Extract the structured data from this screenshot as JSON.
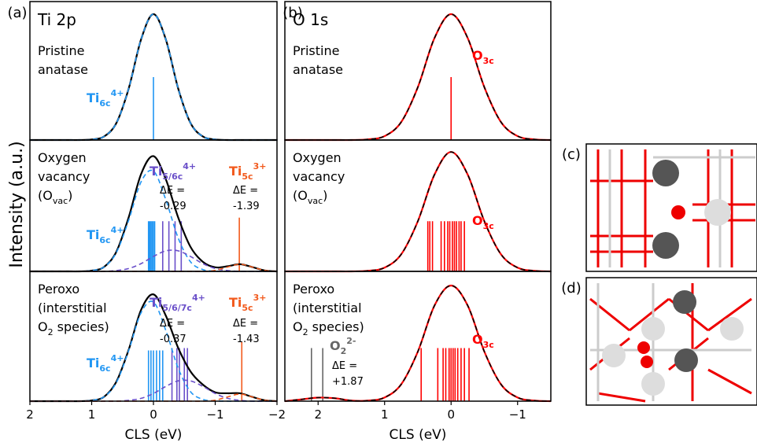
{
  "figure": {
    "ylabel": "Intensity (a.u.)",
    "panel_labels": [
      "(a)",
      "(b)",
      "(c)",
      "(d)"
    ]
  },
  "chart_data": [
    {
      "type": "line",
      "xlim": [
        2,
        -2
      ],
      "ylim": [
        0,
        1.1
      ],
      "x": [
        2,
        1.8,
        1.6,
        1.4,
        1.2,
        1.0,
        0.8,
        0.6,
        0.4,
        0.2,
        0,
        -0.2,
        -0.4,
        -0.6,
        -0.8,
        -1.0,
        -1.2,
        -1.4,
        -1.6,
        -1.8,
        -2
      ],
      "series": [
        {
          "color": "#000000",
          "dash": false,
          "values": [
            0,
            0,
            0,
            0,
            0,
            0.004,
            0.028,
            0.135,
            0.41,
            0.8,
            1,
            0.8,
            0.41,
            0.135,
            0.028,
            0.004,
            0,
            0,
            0,
            0,
            0
          ]
        },
        {
          "color": "#2196f3",
          "dash": true,
          "values": [
            0,
            0,
            0,
            0,
            0,
            0.004,
            0.028,
            0.135,
            0.41,
            0.8,
            1,
            0.8,
            0.41,
            0.135,
            0.028,
            0.004,
            0,
            0,
            0,
            0,
            0
          ]
        }
      ],
      "sticks": [
        {
          "color": "#2196f3",
          "x": [
            0
          ],
          "values": [
            0.5
          ]
        }
      ],
      "annotations": [
        {
          "parts": [
            {
              "t": "Ti 2p"
            }
          ]
        },
        {
          "parts": [
            {
              "t": "Pristine"
            }
          ]
        },
        {
          "parts": [
            {
              "t": "anatase"
            }
          ]
        },
        {
          "color": "#2196f3",
          "parts": [
            {
              "t": "Ti"
            },
            {
              "sub": "6c"
            },
            {
              "sup": "4+"
            }
          ]
        }
      ]
    },
    {
      "type": "line",
      "xlim": [
        2,
        -2
      ],
      "ylim": [
        0,
        1.1
      ],
      "x": [
        2,
        1.8,
        1.6,
        1.4,
        1.2,
        1.0,
        0.8,
        0.6,
        0.4,
        0.2,
        0,
        -0.2,
        -0.4,
        -0.6,
        -0.8,
        -1.0,
        -1.2,
        -1.4,
        -1.6,
        -1.8,
        -2
      ],
      "series": [
        {
          "color": "#000000",
          "dash": false,
          "values": [
            0,
            0,
            0,
            0,
            0,
            0.006,
            0.037,
            0.165,
            0.454,
            0.815,
            0.965,
            0.772,
            0.452,
            0.205,
            0.08,
            0.034,
            0.043,
            0.06,
            0.036,
            0.008,
            0
          ]
        },
        {
          "color": "#2196f3",
          "dash": true,
          "values": [
            0,
            0,
            0,
            0,
            0,
            0.006,
            0.037,
            0.158,
            0.43,
            0.75,
            0.84,
            0.6,
            0.28,
            0.08,
            0.015,
            0.002,
            0,
            0,
            0,
            0,
            0
          ]
        },
        {
          "color": "#6a4fc9",
          "dash": true,
          "values": [
            0,
            0,
            0,
            0,
            0,
            0,
            0,
            0.007,
            0.024,
            0.065,
            0.125,
            0.172,
            0.172,
            0.125,
            0.065,
            0.024,
            0.007,
            0,
            0,
            0,
            0
          ]
        },
        {
          "color": "#f25a1d",
          "dash": true,
          "values": [
            0,
            0,
            0,
            0,
            0,
            0,
            0,
            0,
            0,
            0,
            0,
            0,
            0,
            0,
            0,
            0.008,
            0.036,
            0.06,
            0.036,
            0.008,
            0
          ]
        }
      ],
      "sticks": [
        {
          "color": "#2196f3",
          "x": [
            0.08,
            0.06,
            0.04,
            0.02,
            0,
            -0.02
          ],
          "values": [
            0.42,
            0.42,
            0.42,
            0.42,
            0.42,
            0.42
          ]
        },
        {
          "color": "#6a4fc9",
          "x": [
            -0.15,
            -0.25,
            -0.35,
            -0.45
          ],
          "values": [
            0.42,
            0.42,
            0.42,
            0.42
          ]
        },
        {
          "color": "#f25a1d",
          "x": [
            -1.39
          ],
          "values": [
            0.45
          ]
        }
      ],
      "annotations": [
        {
          "parts": [
            {
              "t": "Oxygen"
            }
          ]
        },
        {
          "parts": [
            {
              "t": "vacancy"
            }
          ]
        },
        {
          "parts": [
            {
              "t": "(O"
            },
            {
              "sub": "vac"
            },
            {
              "t": ")"
            }
          ]
        },
        {
          "color": "#6a4fc9",
          "parts": [
            {
              "t": "Ti"
            },
            {
              "sub": "5/6c"
            },
            {
              "sup": "4+"
            }
          ]
        },
        {
          "parts": [
            {
              "t": "ΔE ="
            }
          ]
        },
        {
          "parts": [
            {
              "t": "-0.29"
            }
          ]
        },
        {
          "color": "#f25a1d",
          "parts": [
            {
              "t": "Ti"
            },
            {
              "sub": "5c"
            },
            {
              "sup": "3+"
            }
          ]
        },
        {
          "parts": [
            {
              "t": "ΔE ="
            }
          ]
        },
        {
          "parts": [
            {
              "t": "-1.39"
            }
          ]
        },
        {
          "color": "#2196f3",
          "parts": [
            {
              "t": "Ti"
            },
            {
              "sub": "6c"
            },
            {
              "sup": "4+"
            }
          ]
        }
      ]
    },
    {
      "type": "line",
      "xlim": [
        2,
        -2
      ],
      "ylim": [
        0,
        1.1
      ],
      "xlabel": "CLS (eV)",
      "xticks": [
        2,
        1,
        0,
        {
          "value": -1,
          "label": "−1"
        },
        {
          "value": -2,
          "label": "−2"
        }
      ],
      "x": [
        2,
        1.8,
        1.6,
        1.4,
        1.2,
        1.0,
        0.8,
        0.6,
        0.4,
        0.2,
        0,
        -0.2,
        -0.4,
        -0.6,
        -0.8,
        -1.0,
        -1.2,
        -1.4,
        -1.6,
        -1.8,
        -2
      ],
      "series": [
        {
          "color": "#000000",
          "dash": false,
          "values": [
            0,
            0,
            0,
            0,
            0,
            0.006,
            0.037,
            0.165,
            0.437,
            0.774,
            0.905,
            0.725,
            0.452,
            0.252,
            0.14,
            0.075,
            0.067,
            0.067,
            0.036,
            0.008,
            0
          ]
        },
        {
          "color": "#2196f3",
          "dash": true,
          "values": [
            0,
            0,
            0,
            0,
            0,
            0.006,
            0.037,
            0.158,
            0.43,
            0.75,
            0.84,
            0.6,
            0.28,
            0.08,
            0.015,
            0.002,
            0,
            0,
            0,
            0,
            0
          ]
        },
        {
          "color": "#6a4fc9",
          "dash": true,
          "values": [
            0,
            0,
            0,
            0,
            0,
            0,
            0,
            0,
            0.007,
            0.024,
            0.065,
            0.125,
            0.172,
            0.172,
            0.125,
            0.065,
            0.024,
            0.007,
            0,
            0,
            0
          ]
        },
        {
          "color": "#f25a1d",
          "dash": true,
          "values": [
            0,
            0,
            0,
            0,
            0,
            0,
            0,
            0,
            0,
            0,
            0,
            0,
            0,
            0,
            0,
            0.008,
            0.036,
            0.06,
            0.036,
            0.008,
            0
          ]
        }
      ],
      "sticks": [
        {
          "color": "#2196f3",
          "x": [
            0.08,
            0.04,
            0,
            -0.05,
            -0.1,
            -0.15
          ],
          "values": [
            0.43,
            0.43,
            0.43,
            0.43,
            0.43,
            0.43
          ]
        },
        {
          "color": "#6a4fc9",
          "x": [
            -0.3,
            -0.38,
            -0.42,
            -0.5,
            -0.55
          ],
          "values": [
            0.45,
            0.45,
            0.45,
            0.45,
            0.45
          ]
        },
        {
          "color": "#f25a1d",
          "x": [
            -1.43
          ],
          "values": [
            0.5
          ]
        }
      ],
      "annotations": [
        {
          "parts": [
            {
              "t": "Peroxo"
            }
          ]
        },
        {
          "parts": [
            {
              "t": "(interstitial"
            }
          ]
        },
        {
          "parts": [
            {
              "t": "O"
            },
            {
              "sub": "2"
            },
            {
              "t": " species)"
            }
          ]
        },
        {
          "color": "#6a4fc9",
          "parts": [
            {
              "t": "Ti"
            },
            {
              "sub": "5/6/7c"
            },
            {
              "sup": "4+"
            }
          ]
        },
        {
          "parts": [
            {
              "t": "ΔE ="
            }
          ]
        },
        {
          "parts": [
            {
              "t": "-0.37"
            }
          ]
        },
        {
          "color": "#f25a1d",
          "parts": [
            {
              "t": "Ti"
            },
            {
              "sub": "5c"
            },
            {
              "sup": "3+"
            }
          ]
        },
        {
          "parts": [
            {
              "t": "ΔE ="
            }
          ]
        },
        {
          "parts": [
            {
              "t": "-1.43"
            }
          ]
        },
        {
          "color": "#2196f3",
          "parts": [
            {
              "t": "Ti"
            },
            {
              "sub": "6c"
            },
            {
              "sup": "4+"
            }
          ]
        }
      ]
    },
    {
      "type": "line",
      "xlim": [
        2.5,
        -1.5
      ],
      "ylim": [
        0,
        1.1
      ],
      "x": [
        2.5,
        2.25,
        2,
        1.75,
        1.5,
        1.25,
        1,
        0.75,
        0.5,
        0.25,
        0,
        -0.25,
        -0.5,
        -0.75,
        -1,
        -1.25,
        -1.5
      ],
      "series": [
        {
          "color": "#ff0000",
          "dash": false,
          "values": [
            0,
            0,
            0,
            0,
            0,
            0.005,
            0.031,
            0.143,
            0.42,
            0.81,
            1,
            0.81,
            0.42,
            0.143,
            0.031,
            0.005,
            0
          ]
        },
        {
          "color": "#000000",
          "dash": true,
          "values": [
            0,
            0,
            0,
            0,
            0,
            0.005,
            0.031,
            0.143,
            0.42,
            0.81,
            1,
            0.81,
            0.42,
            0.143,
            0.031,
            0.005,
            0
          ]
        }
      ],
      "sticks": [
        {
          "color": "#ff0000",
          "x": [
            0
          ],
          "values": [
            0.5
          ]
        }
      ],
      "annotations": [
        {
          "parts": [
            {
              "t": "O 1s"
            }
          ]
        },
        {
          "parts": [
            {
              "t": "Pristine"
            }
          ]
        },
        {
          "parts": [
            {
              "t": "anatase"
            }
          ]
        },
        {
          "color": "#ff0000",
          "parts": [
            {
              "t": "O"
            },
            {
              "sub": "3c"
            }
          ]
        }
      ]
    },
    {
      "type": "line",
      "xlim": [
        2.5,
        -1.5
      ],
      "ylim": [
        0,
        1.1
      ],
      "x": [
        2.5,
        2.25,
        2,
        1.75,
        1.5,
        1.25,
        1,
        0.75,
        0.5,
        0.25,
        0,
        -0.25,
        -0.5,
        -0.75,
        -1,
        -1.25,
        -1.5
      ],
      "series": [
        {
          "color": "#ff0000",
          "dash": false,
          "values": [
            0,
            0,
            0,
            0,
            0,
            0.005,
            0.031,
            0.143,
            0.42,
            0.81,
            1,
            0.81,
            0.42,
            0.143,
            0.031,
            0.005,
            0
          ]
        },
        {
          "color": "#000000",
          "dash": true,
          "values": [
            0,
            0,
            0,
            0,
            0,
            0.005,
            0.031,
            0.143,
            0.42,
            0.81,
            1,
            0.81,
            0.42,
            0.143,
            0.031,
            0.005,
            0
          ]
        }
      ],
      "sticks": [
        {
          "color": "#ff0000",
          "x": [
            0.35,
            0.32,
            0.28,
            0.15,
            0.1,
            0.05,
            0.02,
            -0.02,
            -0.05,
            -0.08,
            -0.12,
            -0.15,
            -0.2
          ],
          "values": [
            0.42,
            0.42,
            0.42,
            0.42,
            0.42,
            0.42,
            0.42,
            0.42,
            0.42,
            0.42,
            0.42,
            0.42,
            0.42
          ]
        }
      ],
      "annotations": [
        {
          "parts": [
            {
              "t": "Oxygen"
            }
          ]
        },
        {
          "parts": [
            {
              "t": "vacancy"
            }
          ]
        },
        {
          "parts": [
            {
              "t": "(O"
            },
            {
              "sub": "vac"
            },
            {
              "t": ")"
            }
          ]
        },
        {
          "color": "#ff0000",
          "parts": [
            {
              "t": "O"
            },
            {
              "sub": "3c"
            }
          ]
        }
      ]
    },
    {
      "type": "line",
      "xlim": [
        2.5,
        -1.5
      ],
      "ylim": [
        0,
        1.1
      ],
      "xlabel": "CLS (eV)",
      "xticks": [
        2,
        1,
        0,
        {
          "value": -1,
          "label": "−1"
        }
      ],
      "x": [
        2.5,
        2.25,
        2,
        1.75,
        1.5,
        1.25,
        1,
        0.75,
        0.5,
        0.25,
        0,
        -0.25,
        -0.5,
        -0.75,
        -1,
        -1.25,
        -1.5
      ],
      "series": [
        {
          "color": "#ff0000",
          "dash": false,
          "values": [
            0,
            0.015,
            0.03,
            0.025,
            0.005,
            0.005,
            0.031,
            0.143,
            0.42,
            0.81,
            0.98,
            0.81,
            0.42,
            0.143,
            0.031,
            0.005,
            0
          ]
        },
        {
          "color": "#000000",
          "dash": true,
          "values": [
            0,
            0.015,
            0.03,
            0.025,
            0.005,
            0.005,
            0.031,
            0.143,
            0.42,
            0.81,
            0.98,
            0.81,
            0.42,
            0.143,
            0.031,
            0.005,
            0
          ]
        }
      ],
      "sticks": [
        {
          "color": "#ff0000",
          "x": [
            0.45,
            0.2,
            0.12,
            0.08,
            0.03,
            0,
            -0.03,
            -0.06,
            -0.1,
            -0.15,
            -0.2,
            -0.27
          ],
          "values": [
            0.45,
            0.45,
            0.45,
            0.45,
            0.45,
            0.45,
            0.45,
            0.45,
            0.45,
            0.45,
            0.45,
            0.45
          ]
        },
        {
          "color": "#666666",
          "x": [
            2.1,
            1.93
          ],
          "values": [
            0.45,
            0.45
          ]
        }
      ],
      "annotations": [
        {
          "parts": [
            {
              "t": "Peroxo"
            }
          ]
        },
        {
          "parts": [
            {
              "t": "(interstitial"
            }
          ]
        },
        {
          "parts": [
            {
              "t": "O"
            },
            {
              "sub": "2"
            },
            {
              "t": " species)"
            }
          ]
        },
        {
          "color": "#ff0000",
          "parts": [
            {
              "t": "O"
            },
            {
              "sub": "3c"
            }
          ]
        },
        {
          "color": "#666666",
          "parts": [
            {
              "t": "O"
            },
            {
              "sub": "2"
            },
            {
              "sup": "2-"
            }
          ]
        },
        {
          "parts": [
            {
              "t": "ΔE ="
            }
          ]
        },
        {
          "parts": [
            {
              "t": "+1.87"
            }
          ]
        }
      ]
    }
  ]
}
